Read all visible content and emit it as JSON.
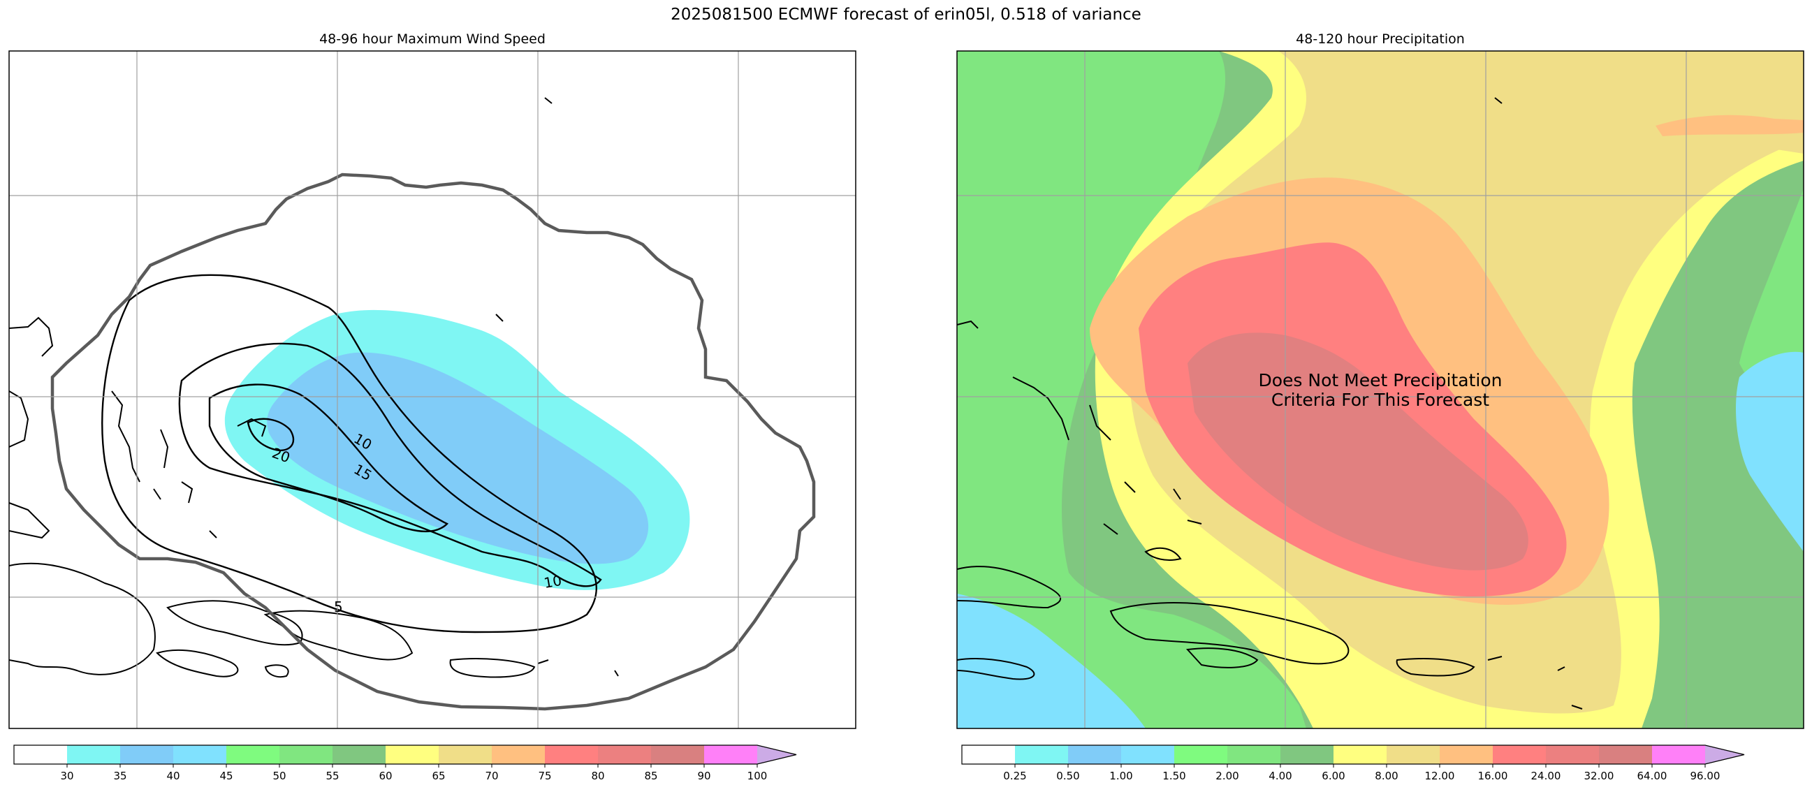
{
  "title": "2025081500 ECMWF forecast of erin05l, 0.518 of variance",
  "panels": [
    {
      "title": "48-96 hour Maximum Wind Speed",
      "colorbar": {
        "ticks": [
          "30",
          "35",
          "40",
          "45",
          "50",
          "55",
          "60",
          "65",
          "70",
          "75",
          "80",
          "85",
          "90",
          "100"
        ],
        "colors": [
          "#ffffff",
          "#7ff6f3",
          "#80ccf8",
          "#80e1fe",
          "#7ffb7f",
          "#80e680",
          "#80c780",
          "#ffff80",
          "#f0de88",
          "#ffc080",
          "#ff8080",
          "#ec8080",
          "#d98080",
          "#ff80f8",
          "#ccabe6"
        ],
        "extend": "max"
      },
      "contour_levels": [
        "5",
        "10",
        "15",
        "20",
        "10"
      ]
    },
    {
      "title": "48-120 hour Precipitation",
      "message_line1": "Does Not Meet Precipitation",
      "message_line2": "Criteria For This Forecast",
      "colorbar": {
        "ticks": [
          "0.25",
          "0.50",
          "1.00",
          "1.50",
          "2.00",
          "4.00",
          "6.00",
          "8.00",
          "12.00",
          "16.00",
          "24.00",
          "32.00",
          "64.00",
          "96.00"
        ],
        "colors": [
          "#ffffff",
          "#7ff6f3",
          "#80ccf8",
          "#80e1fe",
          "#7ffb7f",
          "#80e680",
          "#80c780",
          "#ffff80",
          "#f0de88",
          "#ffc080",
          "#ff8080",
          "#ec8080",
          "#d98080",
          "#ff80f8",
          "#ccabe6"
        ],
        "extend": "max"
      }
    }
  ],
  "colors": {
    "storm_outline": "#5a5a5a",
    "coast": "#000000",
    "grid": "#a0a0a0"
  }
}
